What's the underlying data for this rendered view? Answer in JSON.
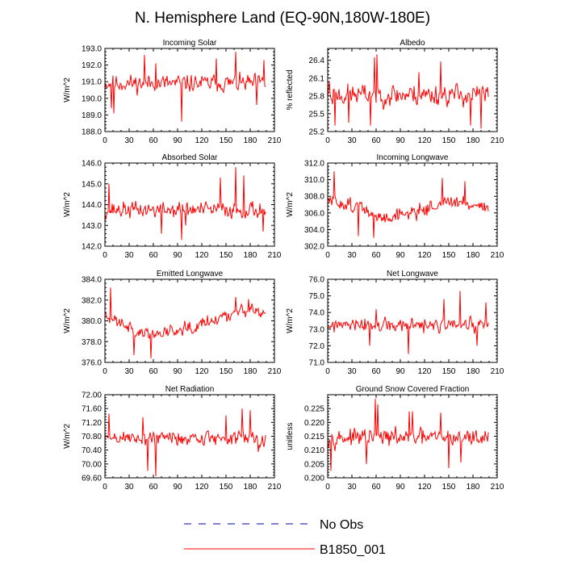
{
  "title": "N. Hemisphere Land (EQ-90N,180W-180E)",
  "legend": [
    {
      "label": "No Obs",
      "color": "#0000aa",
      "dash": true
    },
    {
      "label": "B1850_001",
      "color": "#ff0000",
      "dash": false
    }
  ],
  "chart_data": [
    {
      "type": "line",
      "title": "Incoming Solar",
      "ylabel": "W/m^2",
      "xlim": [
        0,
        210
      ],
      "xticks": [
        0,
        30,
        60,
        90,
        120,
        150,
        180,
        210
      ],
      "xtick_labels": [
        "0",
        "30",
        "60",
        "90",
        "120",
        "150",
        "180",
        "210"
      ],
      "ylim": [
        188,
        193
      ],
      "yticks": [
        188,
        189,
        190,
        191,
        192,
        193
      ],
      "ytick_labels": [
        "188.0",
        "189.0",
        "190.0",
        "191.0",
        "192.0",
        "193.0"
      ],
      "series": [
        {
          "name": "B1850_001",
          "color": "#ff0000",
          "seed": 11,
          "mean": 190.9,
          "amp": 0.8,
          "spikes": [
            [
              49,
              192.6
            ],
            [
              95,
              188.6
            ],
            [
              138,
              192.4
            ],
            [
              162,
              192.8
            ],
            [
              8,
              189.4
            ],
            [
              11,
              189.1
            ],
            [
              63,
              192.1
            ],
            [
              188,
              189.6
            ],
            [
              197,
              192.3
            ]
          ]
        }
      ]
    },
    {
      "type": "line",
      "title": "Albedo",
      "ylabel": "% reflected",
      "xlim": [
        0,
        210
      ],
      "xticks": [
        0,
        30,
        60,
        90,
        120,
        150,
        180,
        210
      ],
      "xtick_labels": [
        "0",
        "30",
        "60",
        "90",
        "120",
        "150",
        "180",
        "210"
      ],
      "ylim": [
        25.2,
        26.6
      ],
      "yticks": [
        25.2,
        25.5,
        25.8,
        26.1,
        26.4
      ],
      "ytick_labels": [
        "25.2",
        "25.5",
        "25.8",
        "26.1",
        "26.4"
      ],
      "series": [
        {
          "name": "B1850_001",
          "color": "#ff0000",
          "seed": 23,
          "mean": 25.82,
          "amp": 0.28,
          "spikes": [
            [
              58,
              26.45
            ],
            [
              61,
              26.5
            ],
            [
              140,
              26.38
            ],
            [
              2,
              26.05
            ],
            [
              9,
              25.3
            ],
            [
              26,
              25.35
            ],
            [
              53,
              25.3
            ],
            [
              177,
              25.3
            ],
            [
              190,
              25.25
            ],
            [
              113,
              26.2
            ]
          ]
        }
      ]
    },
    {
      "type": "line",
      "title": "Absorbed Solar",
      "ylabel": "W/m^2",
      "xlim": [
        0,
        210
      ],
      "xticks": [
        0,
        30,
        60,
        90,
        120,
        150,
        180,
        210
      ],
      "xtick_labels": [
        "0",
        "30",
        "60",
        "90",
        "120",
        "150",
        "180",
        "210"
      ],
      "ylim": [
        142,
        146
      ],
      "yticks": [
        142,
        143,
        144,
        145,
        146
      ],
      "ytick_labels": [
        "142.0",
        "143.0",
        "144.0",
        "145.0",
        "146.0"
      ],
      "series": [
        {
          "name": "B1850_001",
          "color": "#ff0000",
          "seed": 37,
          "mean": 143.75,
          "amp": 0.6,
          "spikes": [
            [
              162,
              145.8
            ],
            [
              143,
              145.3
            ],
            [
              5,
              145.0
            ],
            [
              95,
              142.3
            ],
            [
              196,
              142.7
            ],
            [
              70,
              142.6
            ],
            [
              100,
              143.0
            ],
            [
              172,
              145.4
            ]
          ]
        }
      ]
    },
    {
      "type": "line",
      "title": "Incoming Longwave",
      "ylabel": "W/m^2",
      "xlim": [
        0,
        210
      ],
      "xticks": [
        0,
        30,
        60,
        90,
        120,
        150,
        180,
        210
      ],
      "xtick_labels": [
        "0",
        "30",
        "60",
        "90",
        "120",
        "150",
        "180",
        "210"
      ],
      "ylim": [
        302,
        312
      ],
      "yticks": [
        302,
        304,
        306,
        308,
        310,
        312
      ],
      "ytick_labels": [
        "302.0",
        "304.0",
        "306.0",
        "308.0",
        "310.0",
        "312.0"
      ],
      "series": [
        {
          "name": "B1850_001",
          "color": "#ff0000",
          "seed": 51,
          "mean": 306.6,
          "amp": 1.3,
          "trend": [
            [
              0,
              307.5
            ],
            [
              40,
              306.8
            ],
            [
              60,
              305.3
            ],
            [
              110,
              306.2
            ],
            [
              150,
              307.3
            ],
            [
              200,
              306.8
            ]
          ],
          "spikes": [
            [
              8,
              311.0
            ],
            [
              142,
              310.2
            ],
            [
              57,
              303.0
            ],
            [
              38,
              303.2
            ],
            [
              170,
              309.8
            ]
          ]
        }
      ]
    },
    {
      "type": "line",
      "title": "Emitted Longwave",
      "ylabel": "W/m^2",
      "xlim": [
        0,
        210
      ],
      "xticks": [
        0,
        30,
        60,
        90,
        120,
        150,
        180,
        210
      ],
      "xtick_labels": [
        "0",
        "30",
        "60",
        "90",
        "120",
        "150",
        "180",
        "210"
      ],
      "ylim": [
        376,
        384
      ],
      "yticks": [
        376,
        378,
        380,
        382,
        384
      ],
      "ytick_labels": [
        "376.0",
        "378.0",
        "380.0",
        "382.0",
        "384.0"
      ],
      "series": [
        {
          "name": "B1850_001",
          "color": "#ff0000",
          "seed": 63,
          "mean": 379.8,
          "amp": 1.0,
          "trend": [
            [
              0,
              380.3
            ],
            [
              20,
              380.1
            ],
            [
              40,
              378.8
            ],
            [
              60,
              378.7
            ],
            [
              110,
              379.6
            ],
            [
              150,
              380.5
            ],
            [
              170,
              381.2
            ],
            [
              200,
              380.6
            ]
          ],
          "spikes": [
            [
              7,
              383.2
            ],
            [
              57,
              376.4
            ],
            [
              36,
              376.7
            ],
            [
              162,
              382.3
            ],
            [
              178,
              382.1
            ]
          ]
        }
      ]
    },
    {
      "type": "line",
      "title": "Net Longwave",
      "ylabel": "W/m^2",
      "xlim": [
        0,
        210
      ],
      "xticks": [
        0,
        30,
        60,
        90,
        120,
        150,
        180,
        210
      ],
      "xtick_labels": [
        "0",
        "30",
        "60",
        "90",
        "120",
        "150",
        "180",
        "210"
      ],
      "ylim": [
        71,
        76
      ],
      "yticks": [
        71,
        72,
        73,
        74,
        75,
        76
      ],
      "ytick_labels": [
        "71.0",
        "72.0",
        "73.0",
        "74.0",
        "75.0",
        "76.0"
      ],
      "series": [
        {
          "name": "B1850_001",
          "color": "#ff0000",
          "seed": 77,
          "mean": 73.2,
          "amp": 0.65,
          "spikes": [
            [
              164,
              75.3
            ],
            [
              144,
              74.8
            ],
            [
              196,
              74.6
            ],
            [
              100,
              71.5
            ],
            [
              52,
              72.0
            ],
            [
              185,
              72.0
            ],
            [
              60,
              74.2
            ]
          ]
        }
      ]
    },
    {
      "type": "line",
      "title": "Net Radiation",
      "ylabel": "W/m^2",
      "xlim": [
        0,
        210
      ],
      "xticks": [
        0,
        30,
        60,
        90,
        120,
        150,
        180,
        210
      ],
      "xtick_labels": [
        "0",
        "30",
        "60",
        "90",
        "120",
        "150",
        "180",
        "210"
      ],
      "ylim": [
        69.6,
        72.0
      ],
      "yticks": [
        69.6,
        70.0,
        70.4,
        70.8,
        71.2,
        71.6,
        72.0
      ],
      "ytick_labels": [
        "69.60",
        "70.00",
        "70.40",
        "70.80",
        "71.20",
        "71.60",
        "72.00"
      ],
      "series": [
        {
          "name": "B1850_001",
          "color": "#ff0000",
          "seed": 89,
          "mean": 70.75,
          "amp": 0.35,
          "spikes": [
            [
              53,
              69.8
            ],
            [
              63,
              69.65
            ],
            [
              47,
              71.35
            ],
            [
              170,
              71.6
            ],
            [
              180,
              71.55
            ],
            [
              5,
              71.45
            ],
            [
              150,
              71.4
            ],
            [
              190,
              70.35
            ]
          ]
        }
      ]
    },
    {
      "type": "line",
      "title": "Ground Snow Covered Fraction",
      "ylabel": "unitless",
      "xlim": [
        0,
        210
      ],
      "xticks": [
        0,
        30,
        60,
        90,
        120,
        150,
        180,
        210
      ],
      "xtick_labels": [
        "0",
        "30",
        "60",
        "90",
        "120",
        "150",
        "180",
        "210"
      ],
      "ylim": [
        0.2,
        0.23
      ],
      "yticks": [
        0.2,
        0.205,
        0.21,
        0.215,
        0.22,
        0.225
      ],
      "ytick_labels": [
        "0.200",
        "0.205",
        "0.210",
        "0.215",
        "0.220",
        "0.225"
      ],
      "series": [
        {
          "name": "B1850_001",
          "color": "#ff0000",
          "seed": 97,
          "mean": 0.2145,
          "amp": 0.0045,
          "spikes": [
            [
              59,
              0.2285
            ],
            [
              62,
              0.2265
            ],
            [
              4,
              0.2025
            ],
            [
              101,
              0.224
            ],
            [
              105,
              0.224
            ],
            [
              140,
              0.2235
            ],
            [
              150,
              0.2035
            ],
            [
              165,
              0.2055
            ],
            [
              48,
              0.205
            ]
          ]
        }
      ]
    }
  ]
}
